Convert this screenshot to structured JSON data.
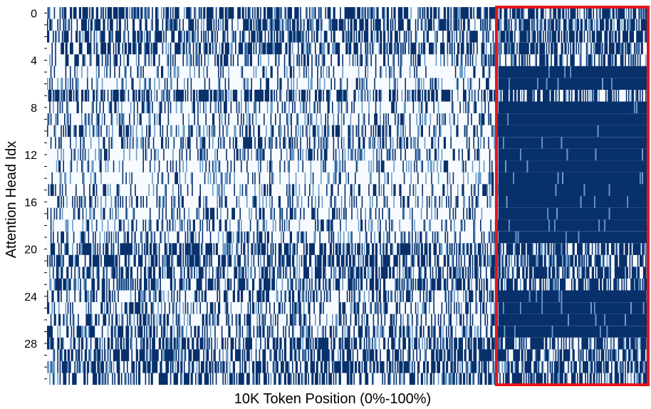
{
  "chart_data": {
    "type": "heatmap",
    "title": "",
    "xlabel": "10K Token Position (0%-100%)",
    "ylabel": "Attention Head Idx",
    "rows": 32,
    "ylim": [
      0,
      31
    ],
    "xlim": [
      0,
      100
    ],
    "yticks": [
      0,
      4,
      8,
      12,
      16,
      20,
      24,
      28
    ],
    "colors": {
      "low": "#f7fbff",
      "high": "#08306b",
      "highlight": "#e8141c"
    },
    "highlight": {
      "x_start_pct": 75,
      "x_end_pct": 100,
      "y_start": 0,
      "y_end": 31
    },
    "row_density_left": [
      0.55,
      0.5,
      0.45,
      0.5,
      0.3,
      0.15,
      0.15,
      0.5,
      0.2,
      0.2,
      0.25,
      0.25,
      0.2,
      0.15,
      0.15,
      0.2,
      0.2,
      0.2,
      0.2,
      0.25,
      0.5,
      0.5,
      0.45,
      0.45,
      0.35,
      0.3,
      0.3,
      0.35,
      0.5,
      0.5,
      0.5,
      0.45
    ],
    "row_density_right": [
      0.55,
      0.55,
      0.6,
      0.6,
      0.5,
      0.97,
      0.97,
      0.5,
      0.98,
      0.98,
      0.98,
      0.98,
      0.97,
      0.97,
      0.97,
      0.97,
      0.97,
      0.97,
      0.97,
      0.97,
      0.6,
      0.6,
      0.6,
      0.6,
      0.95,
      0.95,
      0.95,
      0.95,
      0.55,
      0.55,
      0.55,
      0.55
    ]
  }
}
